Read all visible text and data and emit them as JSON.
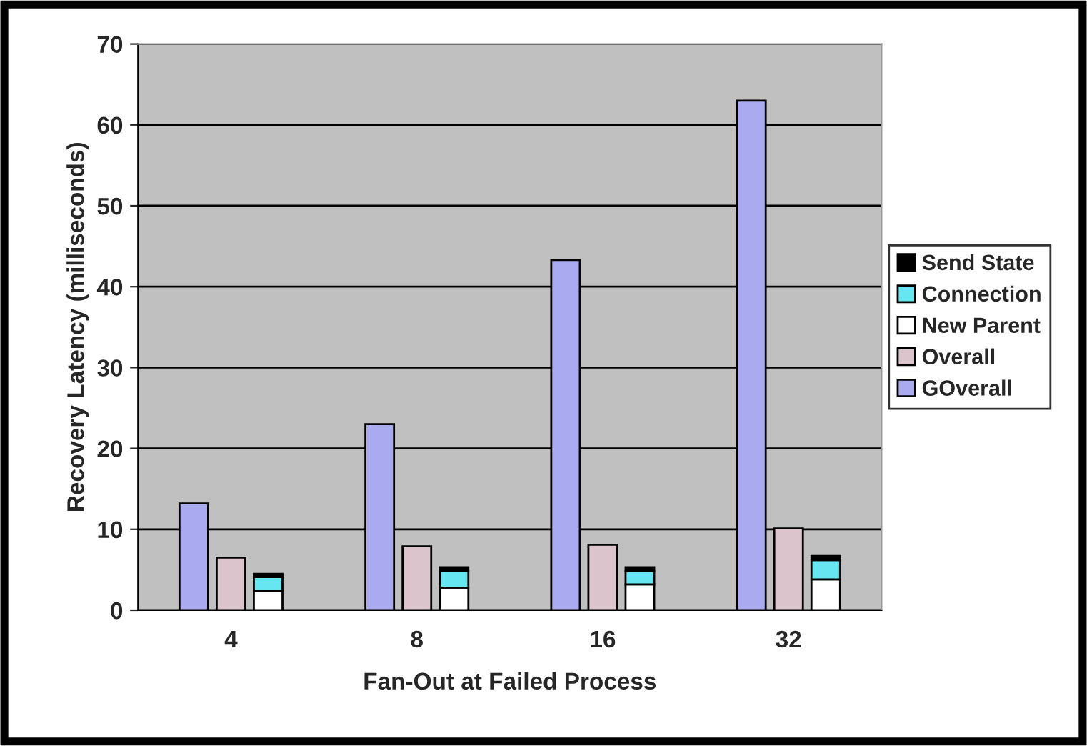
{
  "chart_data": {
    "type": "bar",
    "xlabel": "Fan-Out at Failed Process",
    "ylabel": "Recovery Latency (milliseconds)",
    "categories": [
      null,
      null,
      "4",
      null,
      null,
      null,
      null,
      "8",
      null,
      null,
      null,
      null,
      "16",
      null,
      null,
      null,
      null,
      "32",
      null,
      null
    ],
    "stacked": true,
    "series": [
      {
        "name": "GOverall",
        "color": "#aaaaf0",
        "values": [
          null,
          13.2,
          null,
          null,
          null,
          null,
          23,
          null,
          null,
          null,
          null,
          43.3,
          null,
          null,
          null,
          null,
          63,
          null,
          null,
          null
        ]
      },
      {
        "name": "Overall",
        "color": "#dcc4cc",
        "values": [
          null,
          null,
          6.5,
          null,
          null,
          null,
          null,
          7.9,
          null,
          null,
          null,
          null,
          8.1,
          null,
          null,
          null,
          null,
          10.1,
          null,
          null
        ]
      },
      {
        "name": "New Parent",
        "color": "#ffffff",
        "values": [
          null,
          null,
          null,
          2.4,
          null,
          null,
          null,
          null,
          2.8,
          null,
          null,
          null,
          null,
          3.2,
          null,
          null,
          null,
          null,
          3.8,
          null
        ]
      },
      {
        "name": "Connection",
        "color": "#66e6f0",
        "values": [
          null,
          null,
          null,
          1.7,
          null,
          null,
          null,
          null,
          2.1,
          null,
          null,
          null,
          null,
          1.6,
          null,
          null,
          null,
          null,
          2.4,
          null
        ]
      },
      {
        "name": "Send State",
        "color": "#000000",
        "values": [
          null,
          null,
          null,
          0.4,
          null,
          null,
          null,
          null,
          0.4,
          null,
          null,
          null,
          null,
          0.5,
          null,
          null,
          null,
          null,
          0.5,
          null
        ]
      }
    ],
    "ylim": [
      0,
      70
    ],
    "yticks": [
      0,
      10,
      20,
      30,
      40,
      50,
      60,
      70
    ],
    "grid": "y",
    "legend": "right"
  }
}
